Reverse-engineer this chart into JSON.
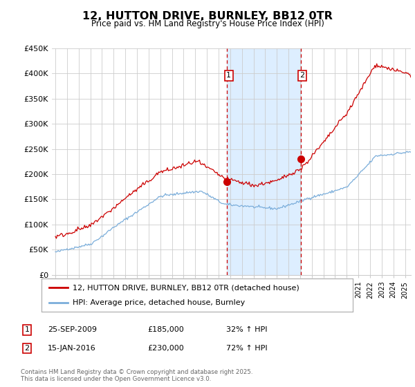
{
  "title": "12, HUTTON DRIVE, BURNLEY, BB12 0TR",
  "subtitle": "Price paid vs. HM Land Registry's House Price Index (HPI)",
  "ylim": [
    0,
    450000
  ],
  "xlim_start": 1994.7,
  "xlim_end": 2025.5,
  "sale1_date": 2009.73,
  "sale1_price": 185000,
  "sale2_date": 2016.04,
  "sale2_price": 230000,
  "legend_line1": "12, HUTTON DRIVE, BURNLEY, BB12 0TR (detached house)",
  "legend_line2": "HPI: Average price, detached house, Burnley",
  "annotation1_date": "25-SEP-2009",
  "annotation1_price": "£185,000",
  "annotation1_hpi": "32% ↑ HPI",
  "annotation2_date": "15-JAN-2016",
  "annotation2_price": "£230,000",
  "annotation2_hpi": "72% ↑ HPI",
  "footer": "Contains HM Land Registry data © Crown copyright and database right 2025.\nThis data is licensed under the Open Government Licence v3.0.",
  "line1_color": "#cc0000",
  "line2_color": "#7aadda",
  "shade_color": "#ddeeff",
  "background_color": "#ffffff",
  "grid_color": "#cccccc"
}
